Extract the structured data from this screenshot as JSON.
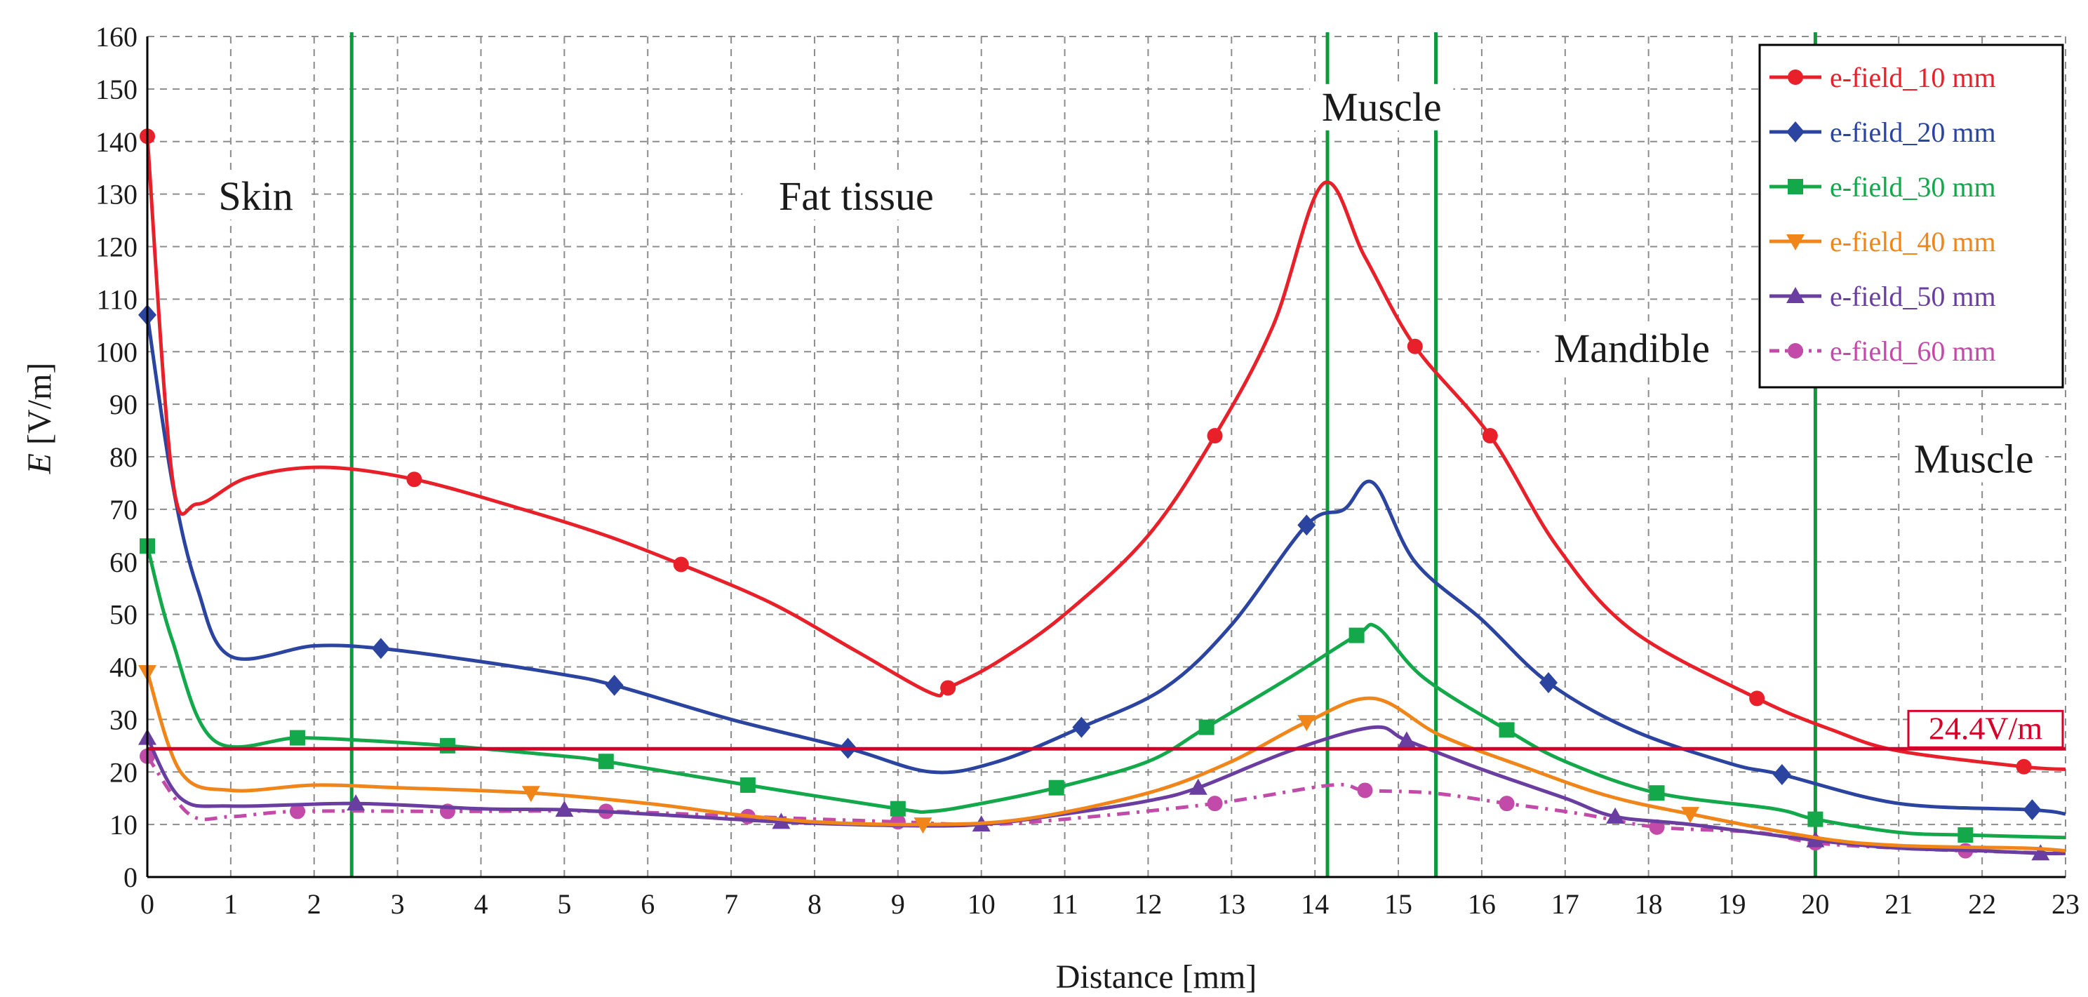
{
  "chart_data": {
    "type": "line",
    "title": "",
    "xlabel": "Distance [mm]",
    "ylabel_italic": "E",
    "ylabel_rest": " [V/m]",
    "xlim": [
      0,
      23
    ],
    "ylim": [
      0,
      160
    ],
    "x_ticks": [
      "0",
      "1",
      "2",
      "3",
      "4",
      "5",
      "6",
      "7",
      "8",
      "9",
      "10",
      "11",
      "12",
      "13",
      "14",
      "15",
      "16",
      "17",
      "18",
      "19",
      "20",
      "21",
      "22",
      "23"
    ],
    "y_ticks": [
      "0",
      "10",
      "20",
      "30",
      "40",
      "50",
      "60",
      "70",
      "80",
      "90",
      "100",
      "110",
      "120",
      "130",
      "140",
      "150",
      "160"
    ],
    "grid": "dashed",
    "legend_position": "top-right",
    "region_boundaries": [
      2.45,
      14.15,
      15.45,
      20.0
    ],
    "region_labels": [
      {
        "text": "Skin",
        "x": 1.3,
        "y": 127
      },
      {
        "text": "Fat tissue",
        "x": 8.5,
        "y": 127
      },
      {
        "text": "Muscle",
        "x": 14.8,
        "y": 144
      },
      {
        "text": "Mandible",
        "x": 17.8,
        "y": 98
      },
      {
        "text": "Muscle",
        "x": 21.9,
        "y": 77
      }
    ],
    "threshold": {
      "value": 24.4,
      "label": "24.4V/m",
      "color": "#d4002a"
    },
    "series": [
      {
        "name": "e-field_10 mm",
        "color": "#e8202a",
        "marker": "circle",
        "dashed": false,
        "x": [
          0,
          0.3,
          0.6,
          1.2,
          2.1,
          3.2,
          4.5,
          5.5,
          6.4,
          7.5,
          8.5,
          9.4,
          9.6,
          10.2,
          11,
          12,
          12.8,
          13.5,
          14.1,
          14.6,
          15.2,
          16.1,
          16.9,
          17.8,
          19.3,
          20.2,
          21,
          22.5,
          23
        ],
        "y": [
          141,
          76,
          71,
          76,
          78,
          75.7,
          70,
          65,
          59.5,
          52,
          43,
          35,
          36,
          41,
          50,
          65,
          84,
          105,
          132,
          118,
          101,
          84,
          63,
          47,
          34,
          28,
          24,
          21,
          20.5
        ],
        "marker_indices": [
          0,
          5,
          8,
          12,
          16,
          20,
          21,
          24,
          27
        ]
      },
      {
        "name": "e-field_20 mm",
        "color": "#2a44a0",
        "marker": "diamond",
        "dashed": false,
        "x": [
          0,
          0.3,
          0.6,
          1,
          2,
          2.8,
          4,
          5,
          5.6,
          7,
          8.4,
          9.4,
          10.2,
          11.2,
          12.2,
          13,
          13.9,
          14.35,
          14.7,
          15.2,
          16,
          16.8,
          17.8,
          19,
          19.6,
          21,
          22.6,
          23
        ],
        "y": [
          107,
          75,
          55,
          42,
          44,
          43.5,
          41,
          38.5,
          36.5,
          30,
          24.5,
          20,
          22,
          28.5,
          36,
          48,
          67,
          70,
          75,
          60,
          49,
          37,
          28,
          21.5,
          19.5,
          14,
          12.8,
          12
        ],
        "marker_indices": [
          0,
          5,
          8,
          10,
          13,
          16,
          21,
          24,
          26
        ]
      },
      {
        "name": "e-field_30 mm",
        "color": "#13a84a",
        "marker": "square",
        "dashed": false,
        "x": [
          0,
          0.3,
          0.8,
          1.8,
          2.6,
          3.6,
          5,
          5.5,
          7.2,
          9,
          9.4,
          10,
          10.9,
          12,
          12.7,
          13.7,
          14.5,
          14.75,
          15.3,
          16.3,
          17,
          18.1,
          19.5,
          20,
          21,
          21.8,
          23
        ],
        "y": [
          63,
          45,
          26,
          26.5,
          26,
          25,
          23,
          22,
          17.5,
          13,
          12.5,
          14,
          17,
          22,
          28.5,
          38,
          46,
          47.5,
          38,
          28,
          22,
          16,
          13,
          11,
          8.5,
          8,
          7.5
        ],
        "marker_indices": [
          0,
          3,
          5,
          7,
          8,
          9,
          12,
          14,
          16,
          19,
          21,
          23,
          25
        ]
      },
      {
        "name": "e-field_40 mm",
        "color": "#f0861a",
        "marker": "triangle-down",
        "dashed": false,
        "x": [
          0,
          0.4,
          1,
          2,
          3,
          4.6,
          6,
          7,
          8,
          9.3,
          10.5,
          12,
          13,
          13.9,
          14.7,
          15.5,
          16.5,
          17.5,
          18.5,
          20,
          21,
          22.5,
          23
        ],
        "y": [
          39,
          20,
          16.5,
          17.5,
          17,
          16,
          14,
          12,
          10.5,
          10,
          11,
          16,
          22,
          29.5,
          34,
          27,
          21,
          15.5,
          12,
          7.5,
          6,
          5.5,
          5
        ],
        "marker_indices": [
          0,
          5,
          9,
          13,
          18
        ]
      },
      {
        "name": "e-field_50 mm",
        "color": "#6a3ea0",
        "marker": "triangle-up",
        "dashed": false,
        "x": [
          0,
          0.4,
          1,
          2.5,
          4,
          5,
          6,
          7.6,
          9,
          10,
          11,
          12,
          12.6,
          13.7,
          14.7,
          15.1,
          16,
          17,
          17.6,
          18.5,
          20,
          21,
          22,
          22.7,
          23
        ],
        "y": [
          26.5,
          15,
          13.5,
          14,
          13,
          12.8,
          12,
          10.5,
          9.8,
          10,
          12,
          14.5,
          17,
          24,
          28.5,
          26,
          20.5,
          15,
          11.5,
          10,
          7,
          5.5,
          5,
          4.5,
          4.5
        ],
        "marker_indices": [
          0,
          3,
          5,
          7,
          9,
          12,
          15,
          18,
          20,
          23
        ]
      },
      {
        "name": "e-field_60 mm",
        "color": "#c24aa8",
        "marker": "circle",
        "dashed": true,
        "x": [
          0,
          0.5,
          1,
          1.8,
          3.6,
          5.5,
          7.2,
          9,
          10,
          11,
          12.8,
          14.2,
          14.6,
          15.4,
          16.3,
          17.2,
          18.1,
          19.3,
          20,
          21,
          21.8,
          23
        ],
        "y": [
          23,
          12,
          11.5,
          12.5,
          12.5,
          12.5,
          11.5,
          10.5,
          10,
          11,
          14,
          17.5,
          16.5,
          16,
          14,
          12,
          9.5,
          8.5,
          6.5,
          5.5,
          5,
          4.5
        ],
        "marker_indices": [
          0,
          3,
          4,
          5,
          6,
          7,
          10,
          12,
          14,
          16,
          18,
          20
        ]
      }
    ]
  }
}
